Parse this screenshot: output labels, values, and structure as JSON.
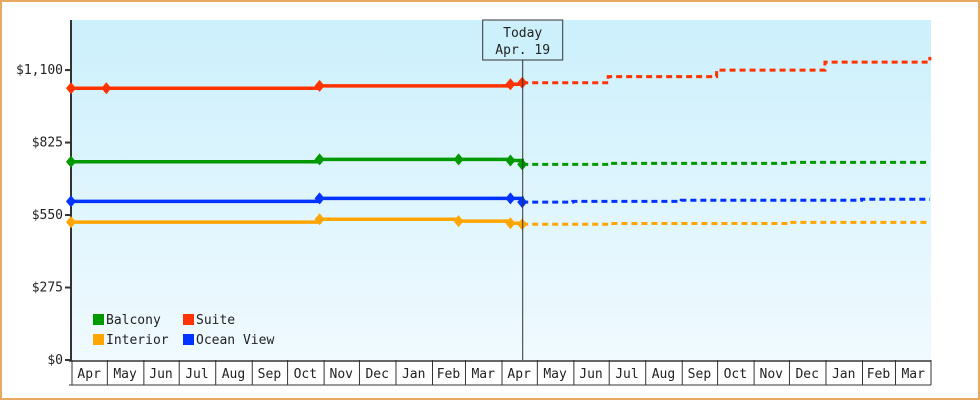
{
  "chart_data": {
    "type": "line",
    "title": "",
    "xlabel": "",
    "ylabel": "",
    "ylim": [
      0,
      1290
    ],
    "y_ticks": [
      "$0",
      "$275",
      "$550",
      "$825",
      "$1,100"
    ],
    "y_tick_values": [
      0,
      275,
      550,
      825,
      1100
    ],
    "x_tick_labels": [
      "Apr",
      "May",
      "Jun",
      "Jul",
      "Aug",
      "Sep",
      "Oct",
      "Nov",
      "Dec",
      "Jan",
      "Feb",
      "Mar",
      "Apr",
      "May",
      "Jun",
      "Jul",
      "Aug",
      "Sep",
      "Oct",
      "Nov",
      "Dec",
      "Jan",
      "Feb",
      "Mar"
    ],
    "x_range": [
      "Apr 1",
      "Mar 31 (following year)"
    ],
    "today": {
      "title": "Today",
      "date": "Apr. 19",
      "x": "Apr 19"
    },
    "grid": false,
    "legend_position": "bottom-left",
    "line_style": "step; solid = history with markers, dashed = projection after today",
    "series": [
      {
        "name": "Balcony",
        "color": "#009900",
        "history": [
          [
            "Apr 1",
            752
          ],
          [
            "Oct 29",
            761
          ],
          [
            "Feb 24",
            761
          ],
          [
            "Apr 9",
            757
          ],
          [
            "Apr 19",
            742
          ]
        ],
        "projection": [
          [
            "Apr 19",
            742
          ],
          [
            "Jul 1",
            746
          ],
          [
            "Dec 1",
            750
          ],
          [
            "Mar 31",
            750
          ]
        ]
      },
      {
        "name": "Suite",
        "color": "#ff3300",
        "history": [
          [
            "Apr 1",
            1031
          ],
          [
            "May 1",
            1031
          ],
          [
            "Oct 29",
            1040
          ],
          [
            "Apr 9",
            1046
          ],
          [
            "Apr 19",
            1052
          ]
        ],
        "projection": [
          [
            "Apr 19",
            1052
          ],
          [
            "Jul 1",
            1075
          ],
          [
            "Oct 1",
            1100
          ],
          [
            "Jan 1",
            1130
          ],
          [
            "Mar 31",
            1150
          ]
        ]
      },
      {
        "name": "Interior",
        "color": "#ffa500",
        "history": [
          [
            "Apr 1",
            523
          ],
          [
            "Oct 29",
            534
          ],
          [
            "Feb 24",
            527
          ],
          [
            "Apr 9",
            519
          ],
          [
            "Apr 19",
            515
          ]
        ],
        "projection": [
          [
            "Apr 19",
            515
          ],
          [
            "Jul 1",
            518
          ],
          [
            "Dec 1",
            522
          ],
          [
            "Mar 31",
            522
          ]
        ]
      },
      {
        "name": "Ocean View",
        "color": "#0033ff",
        "history": [
          [
            "Apr 1",
            602
          ],
          [
            "Oct 29",
            613
          ],
          [
            "Apr 9",
            613
          ],
          [
            "Apr 19",
            599
          ]
        ],
        "projection": [
          [
            "Apr 19",
            599
          ],
          [
            "Jun 1",
            602
          ],
          [
            "Sep 1",
            606
          ],
          [
            "Feb 1",
            610
          ],
          [
            "Mar 31",
            610
          ]
        ]
      }
    ]
  }
}
